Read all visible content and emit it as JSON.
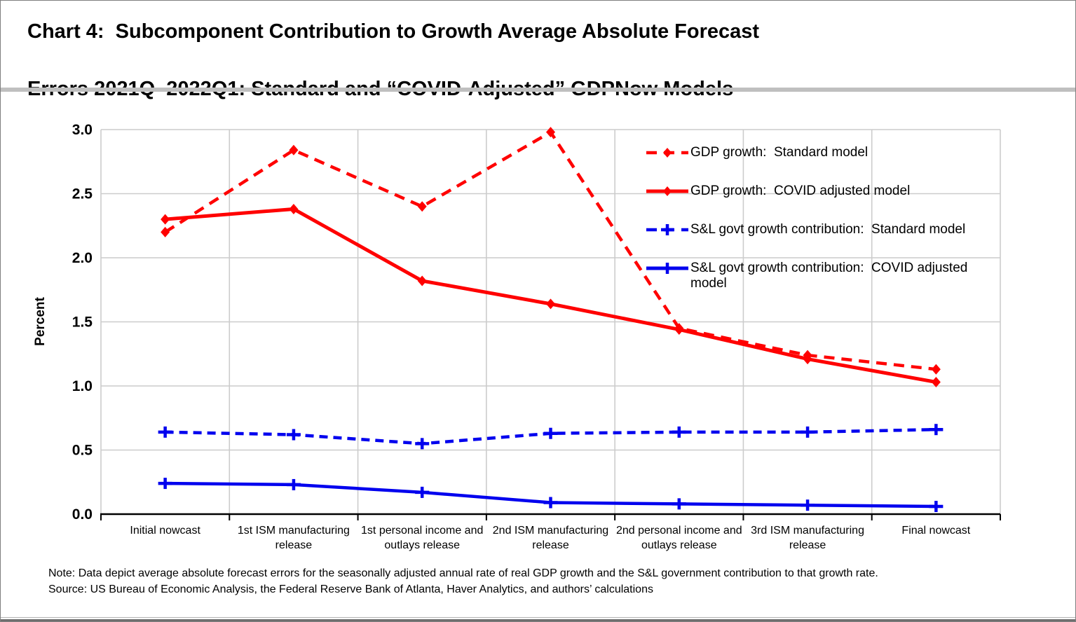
{
  "page": {
    "title_line1": "Chart 4:  Subcomponent Contribution to Growth Average Absolute Forecast",
    "title_line2": "Errors 2021Q–2022Q1: Standard and “COVID-Adjusted” GDPNow Models",
    "note_line1": "Note: Data depict average absolute forecast errors for the seasonally adjusted annual rate of real GDP growth and the S&L government contribution to that growth rate.",
    "note_line2": "Source: US Bureau of Economic Analysis, the Federal Reserve Bank of Atlanta, Haver Analytics, and authors’ calculations"
  },
  "colors": {
    "red_series": "#ff0000",
    "blue_series": "#0000ee",
    "gridline": "#cccccc",
    "axis": "#000000",
    "separator_bar": "#bfbfbf"
  },
  "chart_data": {
    "type": "line",
    "title": "Chart 4: Subcomponent Contribution to Growth Average Absolute Forecast Errors 2021Q–2022Q1: Standard and “COVID-Adjusted” GDPNow Models",
    "xlabel": "",
    "ylabel": "Percent",
    "ylim": [
      0.0,
      3.0
    ],
    "ytick_step": 0.5,
    "yticks": [
      "0.0",
      "0.5",
      "1.0",
      "1.5",
      "2.0",
      "2.5",
      "3.0"
    ],
    "grid": true,
    "legend_position": "top-right-inside",
    "categories": [
      "Initial nowcast",
      "1st ISM manufacturing release",
      "1st personal income and outlays release",
      "2nd ISM manufacturing release",
      "2nd personal income and outlays release",
      "3rd ISM manufacturing release",
      "Final nowcast"
    ],
    "series": [
      {
        "name": "GDP growth:  Standard model",
        "color": "#ff0000",
        "line_style": "dashed",
        "marker": "diamond",
        "values": [
          2.2,
          2.84,
          2.4,
          2.98,
          1.45,
          1.24,
          1.13
        ]
      },
      {
        "name": "GDP growth:  COVID adjusted model",
        "color": "#ff0000",
        "line_style": "solid",
        "marker": "diamond",
        "values": [
          2.3,
          2.38,
          1.82,
          1.64,
          1.44,
          1.21,
          1.03
        ]
      },
      {
        "name": "S&L govt growth contribution:  Standard model",
        "color": "#0000ee",
        "line_style": "dashed",
        "marker": "plus",
        "values": [
          0.64,
          0.62,
          0.55,
          0.63,
          0.64,
          0.64,
          0.66
        ]
      },
      {
        "name": "S&L govt growth contribution:  COVID adjusted model",
        "color": "#0000ee",
        "line_style": "solid",
        "marker": "plus",
        "values": [
          0.24,
          0.23,
          0.17,
          0.09,
          0.08,
          0.07,
          0.06
        ]
      }
    ]
  }
}
